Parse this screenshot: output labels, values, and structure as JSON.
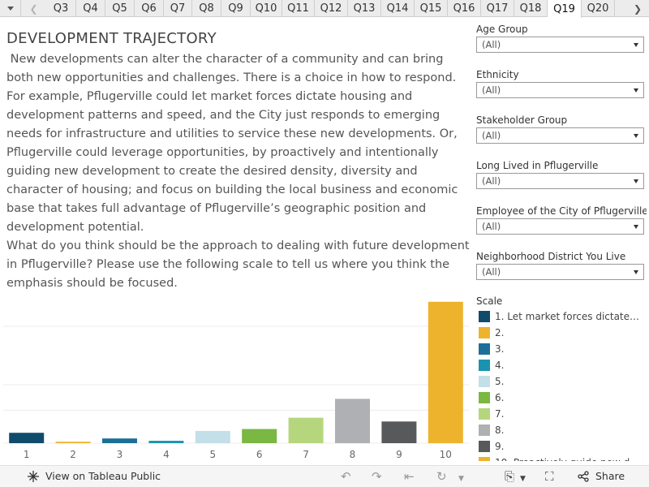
{
  "tabs": {
    "items": [
      "Q3",
      "Q4",
      "Q5",
      "Q6",
      "Q7",
      "Q8",
      "Q9",
      "Q10",
      "Q11",
      "Q12",
      "Q13",
      "Q14",
      "Q15",
      "Q16",
      "Q17",
      "Q18",
      "Q19",
      "Q20"
    ],
    "active": "Q19"
  },
  "title": "DEVELOPMENT TRAJECTORY",
  "paragraphs": [
    " New developments can alter the character of a community and can bring both new opportunities and challenges. There is a choice in how to respond. For example, Pflugerville could let market forces dictate housing and development patterns and speed, and the City just responds to emerging needs for infrastructure and utilities to service these new developments. Or, Pflugerville could leverage opportunities, by proactively and intentionally guiding new development to create the desired density, diversity and character of housing; and focus on building the local business and economic base that takes full advantage of Pflugerville’s geographic position and development potential.",
    "What do you think should be the approach to dealing with future development in Pflugerville? Please use the following scale to tell us where you think the emphasis should be focused."
  ],
  "filters": [
    {
      "label": "Age Group",
      "value": "(All)"
    },
    {
      "label": "Ethnicity",
      "value": "(All)"
    },
    {
      "label": "Stakeholder Group",
      "value": "(All)"
    },
    {
      "label": "Long Lived in Pflugerville",
      "value": "(All)"
    },
    {
      "label": "Employee of the City of Pflugerville",
      "value": "(All)"
    },
    {
      "label": "Neighborhood District You Live",
      "value": "(All)"
    }
  ],
  "legend": {
    "title": "Scale",
    "items": [
      {
        "label": "1. Let market forces dictate ...",
        "color": "#0f4c6b"
      },
      {
        "label": "2.",
        "color": "#eeb32d"
      },
      {
        "label": "3.",
        "color": "#1d6f99"
      },
      {
        "label": "4.",
        "color": "#1a93b0"
      },
      {
        "label": "5.",
        "color": "#c3dfe7"
      },
      {
        "label": "6.",
        "color": "#7ab743"
      },
      {
        "label": "7.",
        "color": "#b6d67e"
      },
      {
        "label": "8.",
        "color": "#aeb0b3"
      },
      {
        "label": "9.",
        "color": "#58595b"
      },
      {
        "label": "10. Proactively guide new d...",
        "color": "#eeb32d"
      }
    ]
  },
  "chart_data": {
    "type": "bar",
    "categories": [
      "1",
      "2",
      "3",
      "4",
      "5",
      "6",
      "7",
      "8",
      "9",
      "10"
    ],
    "values": [
      11,
      1.5,
      5,
      2.5,
      13,
      15,
      27,
      47,
      23,
      150
    ],
    "colors": [
      "#0f4c6b",
      "#eeb32d",
      "#1d6f99",
      "#1a93b0",
      "#c3dfe7",
      "#7ab743",
      "#b6d67e",
      "#aeb0b3",
      "#58595b",
      "#eeb32d"
    ],
    "ylim": [
      0,
      155
    ],
    "gridlines": [
      0,
      35,
      62,
      124
    ],
    "title": "",
    "xlabel": "",
    "ylabel": ""
  },
  "footer": {
    "view_label": "View on Tableau Public",
    "share_label": "Share"
  }
}
